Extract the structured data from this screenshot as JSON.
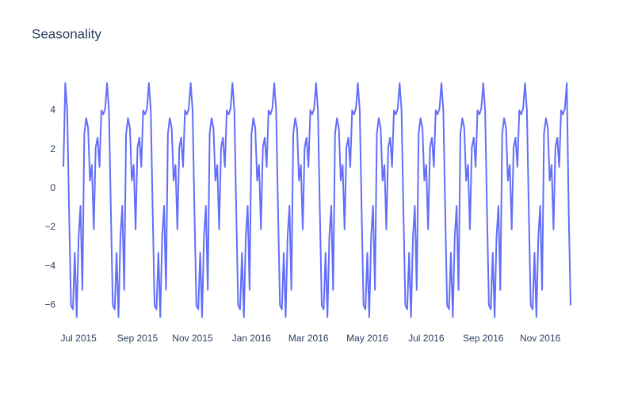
{
  "chart_data": {
    "type": "line",
    "title": "Seasonality",
    "color": "#636efa",
    "grid": false,
    "ylim": [
      -7.4,
      5.6
    ],
    "yticks": [
      {
        "value": -6,
        "label": "−6"
      },
      {
        "value": -4,
        "label": "−4"
      },
      {
        "value": -2,
        "label": "−2"
      },
      0,
      2,
      4
    ],
    "categories": [
      null,
      null,
      null,
      null,
      null,
      null,
      null,
      null,
      "Jul 2015",
      null,
      null,
      null,
      null,
      null,
      null,
      null,
      null,
      null,
      null,
      null,
      null,
      null,
      null,
      null,
      null,
      null,
      null,
      null,
      null,
      null,
      null,
      null,
      null,
      null,
      null,
      null,
      null,
      null,
      null,
      "Sep 2015",
      null,
      null,
      null,
      null,
      null,
      null,
      null,
      null,
      null,
      null,
      null,
      null,
      null,
      null,
      null,
      null,
      null,
      null,
      null,
      null,
      null,
      null,
      null,
      null,
      null,
      null,
      null,
      null,
      "Nov 2015",
      null,
      null,
      null,
      null,
      null,
      null,
      null,
      null,
      null,
      null,
      null,
      null,
      null,
      null,
      null,
      null,
      null,
      null,
      null,
      null,
      null,
      null,
      null,
      null,
      null,
      null,
      null,
      null,
      null,
      null,
      "Jan 2016",
      null,
      null,
      null,
      null,
      null,
      null,
      null,
      null,
      null,
      null,
      null,
      null,
      null,
      null,
      null,
      null,
      null,
      null,
      null,
      null,
      null,
      null,
      null,
      null,
      null,
      null,
      null,
      null,
      null,
      "Mar 2016",
      null,
      null,
      null,
      null,
      null,
      null,
      null,
      null,
      null,
      null,
      null,
      null,
      null,
      null,
      null,
      null,
      null,
      null,
      null,
      null,
      null,
      null,
      null,
      null,
      null,
      null,
      null,
      null,
      null,
      null,
      "May 2016",
      null,
      null,
      null,
      null,
      null,
      null,
      null,
      null,
      null,
      null,
      null,
      null,
      null,
      null,
      null,
      null,
      null,
      null,
      null,
      null,
      null,
      null,
      null,
      null,
      null,
      null,
      null,
      null,
      null,
      null,
      "Jul 2016",
      null,
      null,
      null,
      null,
      null,
      null,
      null,
      null,
      null,
      null,
      null,
      null,
      null,
      null,
      null,
      null,
      null,
      null,
      null,
      null,
      null,
      null,
      null,
      null,
      null,
      null,
      null,
      null,
      null,
      "Sep 2016",
      null,
      null,
      null,
      null,
      null,
      null,
      null,
      null,
      null,
      null,
      null,
      null,
      null,
      null,
      null,
      null,
      null,
      null,
      null,
      null,
      null,
      null,
      null,
      null,
      null,
      null,
      null,
      null,
      null,
      "Nov 2016",
      null,
      null,
      null,
      null,
      null,
      null,
      null,
      null,
      null,
      null,
      null,
      null,
      null,
      null,
      null,
      null
    ],
    "values": [
      1.1,
      5.4,
      4.0,
      -1.2,
      -6.0,
      -6.2,
      -3.3,
      -6.6,
      -2.5,
      -0.9,
      -5.2,
      2.8,
      3.6,
      3.1,
      0.4,
      1.2,
      -2.1,
      2.1,
      2.6,
      1.1,
      4.0,
      3.8,
      4.1,
      5.4,
      4.0,
      -1.2,
      -6.0,
      -6.2,
      -3.3,
      -6.6,
      -2.5,
      -0.9,
      -5.2,
      2.8,
      3.6,
      3.1,
      0.4,
      1.2,
      -2.1,
      2.1,
      2.6,
      1.1,
      4.0,
      3.8,
      4.1,
      5.4,
      4.0,
      -1.2,
      -6.0,
      -6.2,
      -3.3,
      -6.6,
      -2.5,
      -0.9,
      -5.2,
      2.8,
      3.6,
      3.1,
      0.4,
      1.2,
      -2.1,
      2.1,
      2.6,
      1.1,
      4.0,
      3.8,
      4.1,
      5.4,
      4.0,
      -1.2,
      -6.0,
      -6.2,
      -3.3,
      -6.6,
      -2.5,
      -0.9,
      -5.2,
      2.8,
      3.6,
      3.1,
      0.4,
      1.2,
      -2.1,
      2.1,
      2.6,
      1.1,
      4.0,
      3.8,
      4.1,
      5.4,
      4.0,
      -1.2,
      -6.0,
      -6.2,
      -3.3,
      -6.6,
      -2.5,
      -0.9,
      -5.2,
      2.8,
      3.6,
      3.1,
      0.4,
      1.2,
      -2.1,
      2.1,
      2.6,
      1.1,
      4.0,
      3.8,
      4.1,
      5.4,
      4.0,
      -1.2,
      -6.0,
      -6.2,
      -3.3,
      -6.6,
      -2.5,
      -0.9,
      -5.2,
      2.8,
      3.6,
      3.1,
      0.4,
      1.2,
      -2.1,
      2.1,
      2.6,
      1.1,
      4.0,
      3.8,
      4.1,
      5.4,
      4.0,
      -1.2,
      -6.0,
      -6.2,
      -3.3,
      -6.6,
      -2.5,
      -0.9,
      -5.2,
      2.8,
      3.6,
      3.1,
      0.4,
      1.2,
      -2.1,
      2.1,
      2.6,
      1.1,
      4.0,
      3.8,
      4.1,
      5.4,
      4.0,
      -1.2,
      -6.0,
      -6.2,
      -3.3,
      -6.6,
      -2.5,
      -0.9,
      -5.2,
      2.8,
      3.6,
      3.1,
      0.4,
      1.2,
      -2.1,
      2.1,
      2.6,
      1.1,
      4.0,
      3.8,
      4.1,
      5.4,
      4.0,
      -1.2,
      -6.0,
      -6.2,
      -3.3,
      -6.6,
      -2.5,
      -0.9,
      -5.2,
      2.8,
      3.6,
      3.1,
      0.4,
      1.2,
      -2.1,
      2.1,
      2.6,
      1.1,
      4.0,
      3.8,
      4.1,
      5.4,
      4.0,
      -1.2,
      -6.0,
      -6.2,
      -3.3,
      -6.6,
      -2.5,
      -0.9,
      -5.2,
      2.8,
      3.6,
      3.1,
      0.4,
      1.2,
      -2.1,
      2.1,
      2.6,
      1.1,
      4.0,
      3.8,
      4.1,
      5.4,
      4.0,
      -1.2,
      -6.0,
      -6.2,
      -3.3,
      -6.6,
      -2.5,
      -0.9,
      -5.2,
      2.8,
      3.6,
      3.1,
      0.4,
      1.2,
      -2.1,
      2.1,
      2.6,
      1.1,
      4.0,
      3.8,
      4.1,
      5.4,
      4.0,
      -1.2,
      -6.0,
      -6.2,
      -3.3,
      -6.6,
      -2.5,
      -0.9,
      -5.2,
      2.8,
      3.6,
      3.1,
      0.4,
      1.2,
      -2.1,
      2.1,
      2.6,
      1.1,
      4.0,
      3.8,
      4.1,
      5.4,
      -1.2,
      -6.0
    ]
  }
}
